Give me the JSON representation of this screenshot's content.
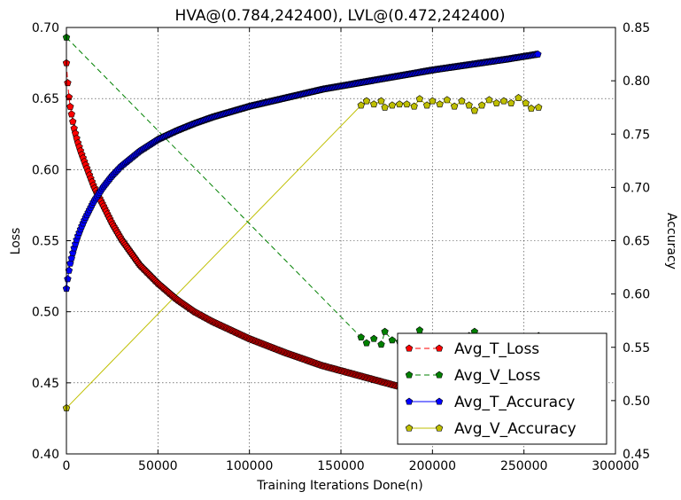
{
  "chart_data": {
    "type": "line",
    "title": "HVA@(0.784,242400), LVL@(0.472,242400)",
    "xlabel": "Training Iterations Done(n)",
    "ylabel_left": "Loss",
    "ylabel_right": "Accuracy",
    "xlim": [
      0,
      300000
    ],
    "ylim_left": [
      0.4,
      0.7
    ],
    "ylim_right": [
      0.45,
      0.85
    ],
    "x_ticks": [
      "0",
      "50000",
      "100000",
      "150000",
      "200000",
      "250000",
      "300000"
    ],
    "y_ticks_left": [
      "0.40",
      "0.45",
      "0.50",
      "0.55",
      "0.60",
      "0.65",
      "0.70"
    ],
    "y_ticks_right": [
      "0.45",
      "0.50",
      "0.55",
      "0.60",
      "0.65",
      "0.70",
      "0.75",
      "0.80",
      "0.85"
    ],
    "grid": true,
    "legend_position": "bottom-right",
    "series": [
      {
        "name": "Avg_T_Loss",
        "axis": "left",
        "color": "#ff0000",
        "line_style": "dashed",
        "marker": "pentagon",
        "dense": true,
        "curve": {
          "x": [
            0,
            1000,
            2000,
            4000,
            6000,
            8000,
            10000,
            15000,
            20000,
            25000,
            30000,
            40000,
            50000,
            60000,
            70000,
            80000,
            100000,
            120000,
            140000,
            160000,
            180000,
            200000,
            220000,
            240000,
            258000
          ],
          "y": [
            0.675,
            0.655,
            0.645,
            0.63,
            0.62,
            0.612,
            0.605,
            0.588,
            0.575,
            0.562,
            0.551,
            0.533,
            0.52,
            0.509,
            0.5,
            0.493,
            0.481,
            0.471,
            0.462,
            0.455,
            0.448,
            0.442,
            0.437,
            0.432,
            0.428
          ]
        }
      },
      {
        "name": "Avg_V_Loss",
        "axis": "left",
        "color": "#008000",
        "line_style": "dashed",
        "marker": "pentagon",
        "points": {
          "x": [
            0,
            161000,
            164000,
            168000,
            172000,
            174000,
            178000,
            182000,
            186000,
            190000,
            193000,
            197000,
            200000,
            204000,
            208000,
            212000,
            216000,
            220000,
            223000,
            227000,
            231000,
            235000,
            239000,
            243000,
            247000,
            251000,
            254000,
            258000
          ],
          "y": [
            0.693,
            0.482,
            0.478,
            0.481,
            0.477,
            0.486,
            0.48,
            0.479,
            0.481,
            0.476,
            0.487,
            0.478,
            0.48,
            0.477,
            0.481,
            0.479,
            0.478,
            0.483,
            0.486,
            0.479,
            0.48,
            0.478,
            0.481,
            0.479,
            0.48,
            0.478,
            0.482,
            0.483
          ]
        }
      },
      {
        "name": "Avg_T_Accuracy",
        "axis": "right",
        "color": "#0000ff",
        "line_style": "solid",
        "marker": "pentagon",
        "dense": true,
        "curve": {
          "x": [
            0,
            1000,
            2000,
            4000,
            6000,
            8000,
            10000,
            15000,
            20000,
            25000,
            30000,
            40000,
            50000,
            60000,
            70000,
            80000,
            100000,
            120000,
            140000,
            160000,
            180000,
            200000,
            220000,
            240000,
            258000
          ],
          "y": [
            0.605,
            0.618,
            0.628,
            0.642,
            0.653,
            0.662,
            0.67,
            0.687,
            0.7,
            0.711,
            0.72,
            0.734,
            0.745,
            0.753,
            0.76,
            0.766,
            0.776,
            0.784,
            0.792,
            0.798,
            0.804,
            0.81,
            0.815,
            0.82,
            0.825
          ]
        }
      },
      {
        "name": "Avg_V_Accuracy",
        "axis": "right",
        "color": "#bfbf00",
        "line_style": "solid",
        "marker": "pentagon",
        "points": {
          "x": [
            0,
            161000,
            164000,
            168000,
            172000,
            174000,
            178000,
            182000,
            186000,
            190000,
            193000,
            197000,
            200000,
            204000,
            208000,
            212000,
            216000,
            220000,
            223000,
            227000,
            231000,
            235000,
            239000,
            243000,
            247000,
            251000,
            254000,
            258000
          ],
          "y": [
            0.493,
            0.777,
            0.781,
            0.778,
            0.781,
            0.775,
            0.777,
            0.778,
            0.778,
            0.776,
            0.783,
            0.777,
            0.781,
            0.778,
            0.782,
            0.776,
            0.781,
            0.777,
            0.772,
            0.777,
            0.782,
            0.779,
            0.781,
            0.779,
            0.784,
            0.779,
            0.774,
            0.775
          ]
        }
      }
    ]
  }
}
